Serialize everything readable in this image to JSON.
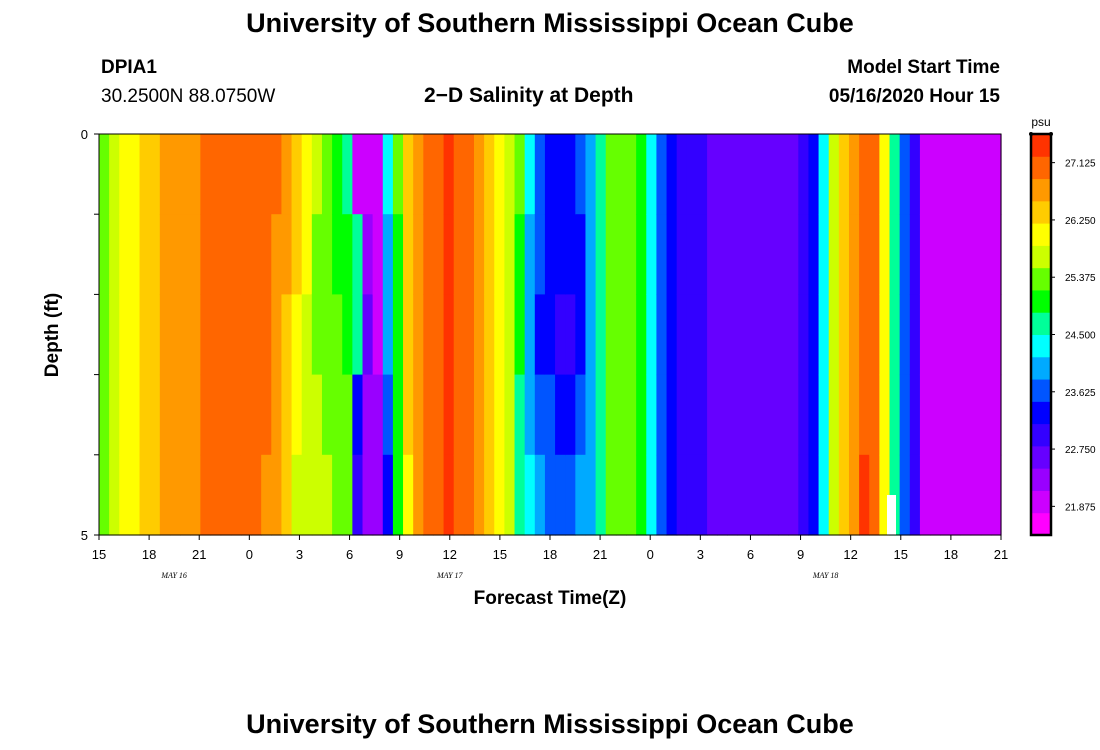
{
  "header": {
    "title": "University of Southern Mississippi Ocean Cube",
    "station_id": "DPIA1",
    "coordinates": "30.2500N 88.0750W",
    "plot_title": "2−D Salinity at Depth",
    "model_start_label": "Model Start Time",
    "model_start_value": "05/16/2020 Hour 15"
  },
  "footer": {
    "title": "University of Southern Mississippi Ocean Cube"
  },
  "colors": {
    "palette": [
      "#ff00ff",
      "#cc00ff",
      "#9900ff",
      "#6600ff",
      "#3300ff",
      "#0000ff",
      "#0055ff",
      "#00aaff",
      "#00ffff",
      "#00ff99",
      "#00ff00",
      "#66ff00",
      "#ccff00",
      "#ffff00",
      "#ffcc00",
      "#ff9900",
      "#ff6600",
      "#ff3300"
    ],
    "gap": "#ffffff"
  },
  "chart_data": {
    "type": "heatmap",
    "title": "2−D Salinity at Depth",
    "xlabel": "Forecast Time(Z)",
    "ylabel": "Depth (ft)",
    "x_range_hours": [
      0,
      54
    ],
    "ylim": [
      0,
      5
    ],
    "y_ticks": [
      0,
      1,
      2,
      3,
      4,
      5
    ],
    "y_tick_labels": [
      {
        "value": 0,
        "label": "0"
      },
      {
        "value": 5,
        "label": "5"
      }
    ],
    "x_tick_labels": [
      "15",
      "18",
      "21",
      "0",
      "3",
      "6",
      "9",
      "12",
      "15",
      "18",
      "21",
      "0",
      "3",
      "6",
      "9",
      "12",
      "15",
      "18",
      "21"
    ],
    "month_labels": [
      {
        "hour": 4.5,
        "label": "MAY 16"
      },
      {
        "hour": 21,
        "label": "MAY 17"
      },
      {
        "hour": 43.5,
        "label": "MAY 18"
      }
    ],
    "depth_layers": 5,
    "colorbar": {
      "unit": "psu",
      "min": 21.4375,
      "max": 27.5625,
      "labels": [
        "27.125",
        "26.250",
        "25.375",
        "24.500",
        "23.625",
        "22.750",
        "21.875"
      ]
    },
    "salinity_columns": [
      [
        25.5,
        25.5,
        25.5,
        25.5,
        25.5
      ],
      [
        25.8,
        25.8,
        25.8,
        25.8,
        25.8
      ],
      [
        26.0,
        26.0,
        26.0,
        26.0,
        26.0
      ],
      [
        26.2,
        26.2,
        26.2,
        26.2,
        26.2
      ],
      [
        26.4,
        26.4,
        26.4,
        26.4,
        26.4
      ],
      [
        26.5,
        26.5,
        26.5,
        26.5,
        26.5
      ],
      [
        26.55,
        26.55,
        26.55,
        26.55,
        26.55
      ],
      [
        26.7,
        26.7,
        26.7,
        26.7,
        26.7
      ],
      [
        26.75,
        26.75,
        26.75,
        26.75,
        26.75
      ],
      [
        26.8,
        26.8,
        26.8,
        26.8,
        26.8
      ],
      [
        26.9,
        26.9,
        26.9,
        26.9,
        26.9
      ],
      [
        27.0,
        27.0,
        27.0,
        27.0,
        27.0
      ],
      [
        27.05,
        27.05,
        27.05,
        27.05,
        27.05
      ],
      [
        27.1,
        27.1,
        27.1,
        27.1,
        27.1
      ],
      [
        27.1,
        27.1,
        27.1,
        27.1,
        27.1
      ],
      [
        27.05,
        27.05,
        27.05,
        27.05,
        27.05
      ],
      [
        27.0,
        27.0,
        26.95,
        26.9,
        26.8
      ],
      [
        26.9,
        26.85,
        26.8,
        26.75,
        26.6
      ],
      [
        26.7,
        26.6,
        26.5,
        26.4,
        26.3
      ],
      [
        26.5,
        26.3,
        26.1,
        26.0,
        25.8
      ],
      [
        26.0,
        25.9,
        25.8,
        25.7,
        25.6
      ],
      [
        25.6,
        25.5,
        25.5,
        25.6,
        25.7
      ],
      [
        25.2,
        25.3,
        25.4,
        25.5,
        25.6
      ],
      [
        25.0,
        25.1,
        25.2,
        25.3,
        25.5
      ],
      [
        24.8,
        25.0,
        25.1,
        25.2,
        25.4
      ],
      [
        22.1,
        24.6,
        24.8,
        23.4,
        22.8
      ],
      [
        21.9,
        22.3,
        22.6,
        22.4,
        22.2
      ],
      [
        22.1,
        22.0,
        22.1,
        22.2,
        22.4
      ],
      [
        24.3,
        23.9,
        24.0,
        23.8,
        23.3
      ],
      [
        25.2,
        25.1,
        25.1,
        25.0,
        24.9
      ],
      [
        26.3,
        26.3,
        26.3,
        26.3,
        26.2
      ],
      [
        26.6,
        26.6,
        26.6,
        26.6,
        26.6
      ],
      [
        26.9,
        26.9,
        26.9,
        26.9,
        26.9
      ],
      [
        27.2,
        27.2,
        27.2,
        27.2,
        27.2
      ],
      [
        27.3,
        27.3,
        27.3,
        27.3,
        27.3
      ],
      [
        27.2,
        27.2,
        27.2,
        27.2,
        27.2
      ],
      [
        27.0,
        27.0,
        27.0,
        27.0,
        27.0
      ],
      [
        26.8,
        26.8,
        26.8,
        26.8,
        26.8
      ],
      [
        26.5,
        26.5,
        26.5,
        26.5,
        26.5
      ],
      [
        26.2,
        26.2,
        26.2,
        26.2,
        26.2
      ],
      [
        25.8,
        25.8,
        25.8,
        25.8,
        25.7
      ],
      [
        25.2,
        25.0,
        24.9,
        24.8,
        24.6
      ],
      [
        24.2,
        24.1,
        24.0,
        24.1,
        24.2
      ],
      [
        23.6,
        23.5,
        23.4,
        23.6,
        23.9
      ],
      [
        23.4,
        23.3,
        23.2,
        23.5,
        23.8
      ],
      [
        23.3,
        23.2,
        23.1,
        23.4,
        23.7
      ],
      [
        23.3,
        23.2,
        23.1,
        23.4,
        23.7
      ],
      [
        23.5,
        23.4,
        23.4,
        23.6,
        23.9
      ],
      [
        23.9,
        23.9,
        23.9,
        24.0,
        24.1
      ],
      [
        24.6,
        24.6,
        24.6,
        24.6,
        24.6
      ],
      [
        25.4,
        25.4,
        25.4,
        25.4,
        25.4
      ],
      [
        25.5,
        25.5,
        25.5,
        25.5,
        25.5
      ],
      [
        25.3,
        25.3,
        25.3,
        25.3,
        25.3
      ],
      [
        24.9,
        24.9,
        24.9,
        24.9,
        24.9
      ],
      [
        24.3,
        24.3,
        24.3,
        24.3,
        24.3
      ],
      [
        23.5,
        23.5,
        23.5,
        23.5,
        23.5
      ],
      [
        23.2,
        23.2,
        23.2,
        23.2,
        23.2
      ],
      [
        23.0,
        23.0,
        23.0,
        23.0,
        23.0
      ],
      [
        22.9,
        22.9,
        22.9,
        22.9,
        22.9
      ],
      [
        22.8,
        22.8,
        22.8,
        22.8,
        22.8
      ],
      [
        22.7,
        22.7,
        22.7,
        22.7,
        22.7
      ],
      [
        22.65,
        22.65,
        22.65,
        22.65,
        22.65
      ],
      [
        22.6,
        22.6,
        22.6,
        22.6,
        22.6
      ],
      [
        22.55,
        22.55,
        22.55,
        22.55,
        22.55
      ],
      [
        22.5,
        22.5,
        22.5,
        22.5,
        22.5
      ],
      [
        22.5,
        22.5,
        22.5,
        22.5,
        22.5
      ],
      [
        22.5,
        22.5,
        22.5,
        22.5,
        22.5
      ],
      [
        22.55,
        22.55,
        22.55,
        22.55,
        22.55
      ],
      [
        22.6,
        22.6,
        22.6,
        22.6,
        22.6
      ],
      [
        22.8,
        22.8,
        22.8,
        22.8,
        22.8
      ],
      [
        23.4,
        23.4,
        23.4,
        23.4,
        23.4
      ],
      [
        24.3,
        24.3,
        24.3,
        24.3,
        24.3
      ],
      [
        25.6,
        25.6,
        25.6,
        25.6,
        25.6
      ],
      [
        26.4,
        26.4,
        26.4,
        26.4,
        26.4
      ],
      [
        26.8,
        26.8,
        26.8,
        26.8,
        26.8
      ],
      [
        27.0,
        27.0,
        27.2,
        27.2,
        27.3
      ],
      [
        26.9,
        26.9,
        26.9,
        26.9,
        26.9
      ],
      [
        26.2,
        26.2,
        26.2,
        26.2,
        26.2
      ],
      [
        24.6,
        24.6,
        24.6,
        24.6,
        24.6
      ],
      [
        23.6,
        23.6,
        23.6,
        23.6,
        23.6
      ],
      [
        22.8,
        22.8,
        22.8,
        22.8,
        22.8
      ],
      [
        22.1,
        22.1,
        22.1,
        22.1,
        22.1
      ],
      [
        21.95,
        21.95,
        21.95,
        21.95,
        21.95
      ],
      [
        21.9,
        21.9,
        21.9,
        21.9,
        21.9
      ],
      [
        21.9,
        21.9,
        21.9,
        21.9,
        21.9
      ],
      [
        21.9,
        21.9,
        21.9,
        21.9,
        21.9
      ],
      [
        21.85,
        21.85,
        21.85,
        21.85,
        21.85
      ],
      [
        21.85,
        21.85,
        21.85,
        21.85,
        21.85
      ],
      [
        21.8,
        21.8,
        21.8,
        21.8,
        21.8
      ]
    ]
  }
}
